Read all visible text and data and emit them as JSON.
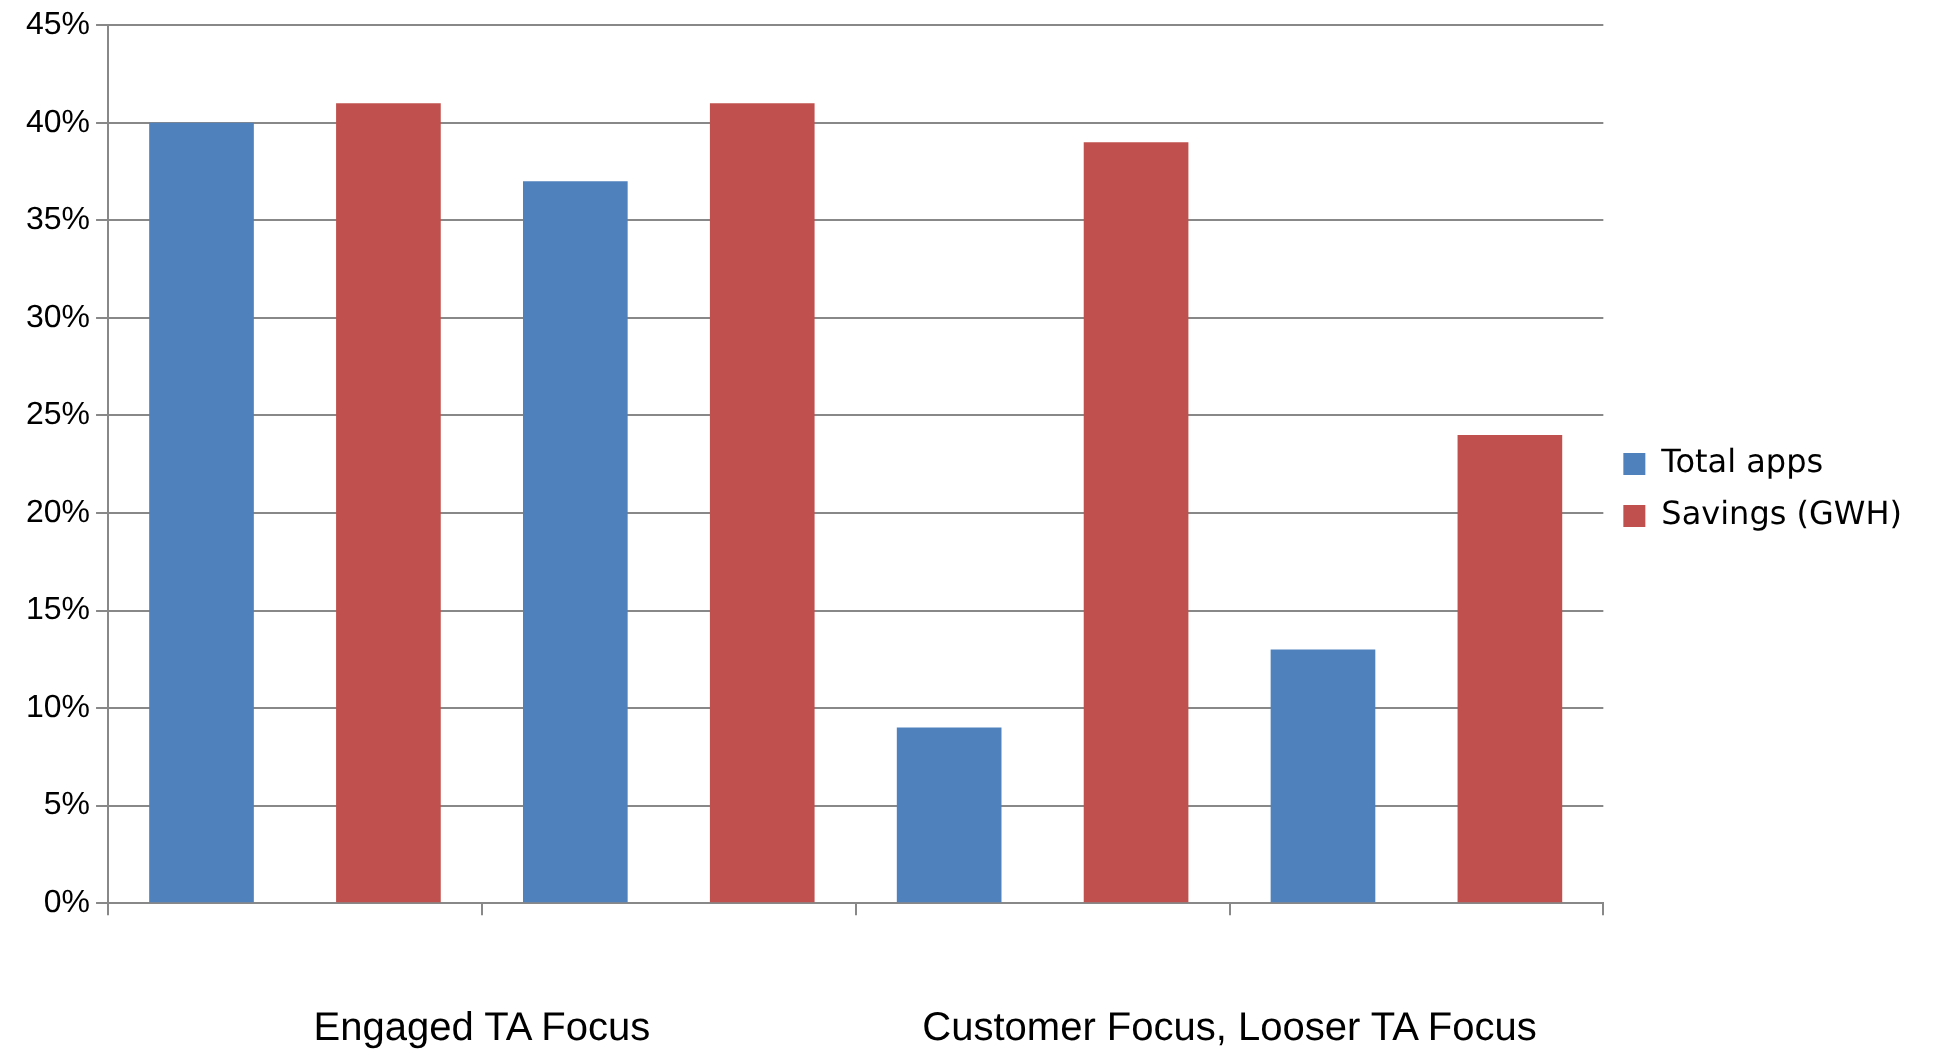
{
  "chart_data": {
    "type": "bar",
    "categories": [
      null,
      null,
      null,
      null
    ],
    "series": [
      {
        "name": "Total apps",
        "color": "#4f81bd",
        "values": [
          40,
          37,
          9,
          13
        ]
      },
      {
        "name": "Savings (GWH)",
        "color": "#c0504d",
        "values": [
          41,
          41,
          39,
          24
        ]
      }
    ],
    "ylim": [
      0,
      45
    ],
    "yticks": [
      {
        "value": 0,
        "label": "0%"
      },
      {
        "value": 5,
        "label": "5%"
      },
      {
        "value": 10,
        "label": "10%"
      },
      {
        "value": 15,
        "label": "15%"
      },
      {
        "value": 20,
        "label": "20%"
      },
      {
        "value": 25,
        "label": "25%"
      },
      {
        "value": 30,
        "label": "30%"
      },
      {
        "value": 35,
        "label": "35%"
      },
      {
        "value": 40,
        "label": "40%"
      },
      {
        "value": 45,
        "label": "45%"
      }
    ],
    "grid": "y",
    "legend": "right",
    "annotations": [
      "Engaged TA Focus",
      "Customer Focus, Looser TA Focus"
    ]
  }
}
